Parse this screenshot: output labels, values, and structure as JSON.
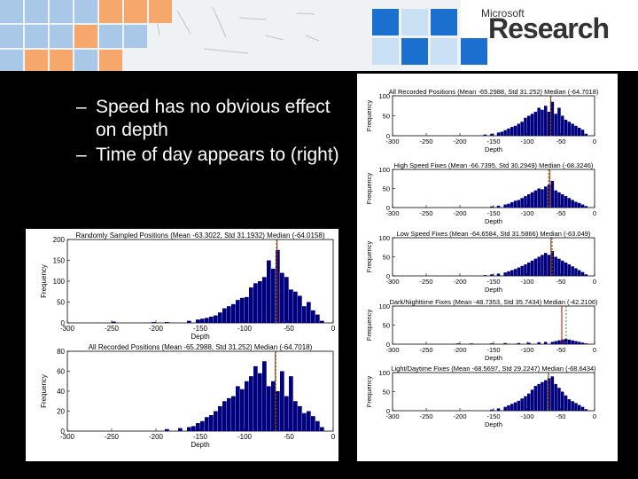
{
  "logo": {
    "small": "Microsoft",
    "big": "Research"
  },
  "bullets": [
    {
      "dash": "–",
      "text": "Speed has no obvious effect on depth"
    },
    {
      "dash": "–",
      "text": "Time of day appears to (right)"
    }
  ],
  "colors": {
    "bar": "#00007f",
    "mean_line": "#cc0000",
    "median_line": "#00a000",
    "background": "#000000"
  },
  "chart_data": [
    {
      "type": "bar",
      "panel": "left",
      "title": "Randomly Sampled Positions (Mean -63.3022, Std 31.1932) Median (-64.0158)",
      "xlabel": "Depth",
      "ylabel": "Frequency",
      "xlim": [
        -300,
        0
      ],
      "ylim": [
        0,
        200
      ],
      "yticks": [
        0,
        50,
        100,
        150,
        200
      ],
      "xticks": [
        -300,
        -250,
        -200,
        -150,
        -100,
        -50,
        0
      ],
      "bin_width": 5,
      "x": [
        -245,
        -200,
        -185,
        -160,
        -150,
        -145,
        -140,
        -135,
        -130,
        -125,
        -120,
        -115,
        -110,
        -105,
        -100,
        -95,
        -90,
        -85,
        -80,
        -75,
        -70,
        -65,
        -60,
        -55,
        -50,
        -45,
        -40,
        -35,
        -30,
        -25,
        -20,
        -15,
        -10
      ],
      "values": [
        3,
        2,
        2,
        5,
        8,
        10,
        12,
        15,
        18,
        25,
        35,
        40,
        45,
        55,
        60,
        62,
        85,
        95,
        100,
        110,
        150,
        130,
        175,
        120,
        110,
        80,
        75,
        65,
        40,
        50,
        30,
        20,
        5
      ],
      "mean": -63.3022,
      "median": -64.0158
    },
    {
      "type": "bar",
      "panel": "left",
      "title": "All Recorded Positions (Mean -65.2988, Std 31.252) Median (-64.7018)",
      "xlabel": "Depth",
      "ylabel": "Frequency",
      "xlim": [
        -300,
        0
      ],
      "ylim": [
        0,
        80
      ],
      "yticks": [
        0,
        20,
        40,
        60,
        80
      ],
      "xticks": [
        -300,
        -250,
        -200,
        -150,
        -100,
        -50,
        0
      ],
      "bin_width": 5,
      "x": [
        -185,
        -170,
        -160,
        -155,
        -150,
        -145,
        -140,
        -135,
        -130,
        -125,
        -120,
        -115,
        -110,
        -105,
        -100,
        -95,
        -90,
        -85,
        -80,
        -75,
        -70,
        -65,
        -60,
        -55,
        -50,
        -45,
        -40,
        -35,
        -30,
        -25,
        -20,
        -15,
        -10
      ],
      "values": [
        2,
        3,
        4,
        5,
        8,
        10,
        14,
        16,
        20,
        25,
        30,
        33,
        35,
        45,
        42,
        50,
        55,
        65,
        58,
        70,
        45,
        50,
        40,
        60,
        35,
        55,
        30,
        25,
        18,
        20,
        15,
        10,
        4
      ],
      "mean": -65.2988,
      "median": -64.7018
    },
    {
      "type": "bar",
      "panel": "right",
      "title": "All Recorded Positions (Mean -65.2988, Std 31.252) Median (-64.7018)",
      "xlabel": "Depth",
      "ylabel": "Frequency",
      "xlim": [
        -300,
        0
      ],
      "ylim": [
        0,
        100
      ],
      "yticks": [
        0,
        50,
        100
      ],
      "xticks": [
        -300,
        -250,
        -200,
        -150,
        -100,
        -50,
        0
      ],
      "bin_width": 5,
      "x": [
        -160,
        -150,
        -140,
        -135,
        -130,
        -125,
        -120,
        -115,
        -110,
        -105,
        -100,
        -95,
        -90,
        -85,
        -80,
        -75,
        -70,
        -65,
        -60,
        -55,
        -50,
        -45,
        -40,
        -35,
        -30,
        -25,
        -20,
        -15,
        -10
      ],
      "values": [
        3,
        5,
        8,
        10,
        14,
        18,
        22,
        25,
        30,
        35,
        45,
        50,
        55,
        60,
        70,
        65,
        75,
        60,
        85,
        55,
        70,
        50,
        40,
        35,
        30,
        25,
        20,
        15,
        5
      ],
      "mean": -65.2988,
      "median": -64.7018
    },
    {
      "type": "bar",
      "panel": "right",
      "title": "High Speed Fixes (Mean -66.7395, Std 30.2949) Median (-68.3246)",
      "xlabel": "Depth",
      "ylabel": "Frequency",
      "xlim": [
        -300,
        0
      ],
      "ylim": [
        0,
        100
      ],
      "yticks": [
        0,
        50,
        100
      ],
      "xticks": [
        -300,
        -250,
        -200,
        -150,
        -100,
        -50,
        0
      ],
      "bin_width": 5,
      "x": [
        -150,
        -140,
        -130,
        -125,
        -120,
        -115,
        -110,
        -105,
        -100,
        -95,
        -90,
        -85,
        -80,
        -75,
        -70,
        -65,
        -60,
        -55,
        -50,
        -45,
        -40,
        -35,
        -30,
        -25,
        -20,
        -15,
        -10
      ],
      "values": [
        3,
        5,
        8,
        10,
        14,
        18,
        20,
        25,
        30,
        35,
        40,
        45,
        50,
        48,
        55,
        60,
        70,
        45,
        40,
        35,
        30,
        25,
        20,
        15,
        12,
        8,
        4
      ],
      "mean": -66.7395,
      "median": -68.3246
    },
    {
      "type": "bar",
      "panel": "right",
      "title": "Low Speed Fixes (Mean -64.6584, Std 31.5866) Median (-63.049)",
      "xlabel": "Depth",
      "ylabel": "Frequency",
      "xlim": [
        -300,
        0
      ],
      "ylim": [
        0,
        100
      ],
      "yticks": [
        0,
        50,
        100
      ],
      "xticks": [
        -300,
        -250,
        -200,
        -150,
        -100,
        -50,
        0
      ],
      "bin_width": 5,
      "x": [
        -160,
        -150,
        -140,
        -130,
        -125,
        -120,
        -115,
        -110,
        -105,
        -100,
        -95,
        -90,
        -85,
        -80,
        -75,
        -70,
        -65,
        -60,
        -55,
        -50,
        -45,
        -40,
        -35,
        -30,
        -25,
        -20,
        -15,
        -10
      ],
      "values": [
        2,
        4,
        6,
        9,
        12,
        15,
        18,
        22,
        26,
        30,
        35,
        40,
        45,
        50,
        55,
        60,
        55,
        65,
        50,
        45,
        40,
        35,
        30,
        25,
        20,
        15,
        10,
        4
      ],
      "mean": -64.6584,
      "median": -63.049
    },
    {
      "type": "bar",
      "panel": "right",
      "title": "Dark/Nighttime Fixes (Mean -48.7353, Std 35.7434) Median (-42.2106)",
      "xlabel": "Depth",
      "ylabel": "Frequency",
      "xlim": [
        -300,
        0
      ],
      "ylim": [
        0,
        100
      ],
      "yticks": [
        0,
        50,
        100
      ],
      "xticks": [
        -300,
        -250,
        -200,
        -150,
        -100,
        -50,
        0
      ],
      "bin_width": 5,
      "x": [
        -200,
        -180,
        -150,
        -130,
        -110,
        -95,
        -80,
        -70,
        -60,
        -55,
        -50,
        -45,
        -40,
        -35,
        -30,
        -25,
        -20,
        -15,
        -10
      ],
      "values": [
        2,
        2,
        2,
        3,
        3,
        4,
        5,
        6,
        6,
        8,
        10,
        12,
        14,
        12,
        10,
        8,
        6,
        4,
        2
      ],
      "mean": -48.7353,
      "median": -42.2106
    },
    {
      "type": "bar",
      "panel": "right",
      "title": "Light/Daytime Fixes (Mean -68.5697, Std 29.2247) Median (-68.6434)",
      "xlabel": "Depth",
      "ylabel": "Frequency",
      "xlim": [
        -300,
        0
      ],
      "ylim": [
        0,
        100
      ],
      "yticks": [
        0,
        50,
        100
      ],
      "xticks": [
        -300,
        -250,
        -200,
        -150,
        -100,
        -50,
        0
      ],
      "bin_width": 5,
      "x": [
        -150,
        -140,
        -130,
        -125,
        -120,
        -115,
        -110,
        -105,
        -100,
        -95,
        -90,
        -85,
        -80,
        -75,
        -70,
        -65,
        -60,
        -55,
        -50,
        -45,
        -40,
        -35,
        -30,
        -25,
        -20,
        -15,
        -10
      ],
      "values": [
        3,
        6,
        10,
        14,
        18,
        22,
        26,
        32,
        38,
        45,
        55,
        65,
        70,
        75,
        80,
        85,
        90,
        70,
        60,
        50,
        40,
        30,
        25,
        20,
        15,
        10,
        4
      ],
      "mean": -68.5697,
      "median": -68.6434
    }
  ]
}
